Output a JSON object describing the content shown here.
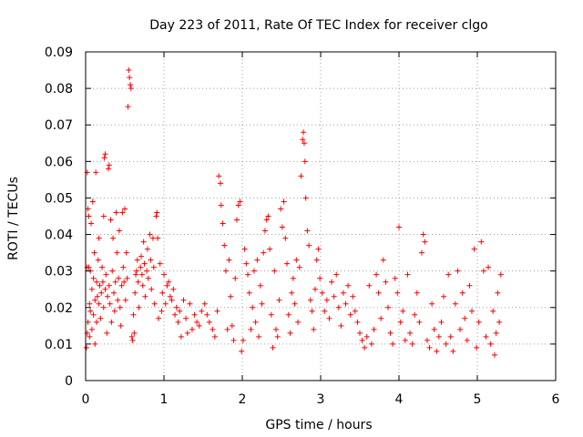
{
  "chart_data": {
    "type": "scatter",
    "title": "Day 223 of 2011, Rate Of TEC Index for receiver clgo",
    "xlabel": "GPS time / hours",
    "ylabel": "ROTI / TECUs",
    "xlim": [
      0,
      6
    ],
    "ylim": [
      0,
      0.09
    ],
    "x_ticks": [
      "0",
      "1",
      "2",
      "3",
      "4",
      "5",
      "6"
    ],
    "y_ticks": [
      "0",
      "0.01",
      "0.02",
      "0.03",
      "0.04",
      "0.05",
      "0.06",
      "0.07",
      "0.08",
      "0.09"
    ],
    "grid": true,
    "marker": "+",
    "marker_color": "#ff0000",
    "series": [
      {
        "points": [
          [
            0.01,
            0.009
          ],
          [
            0.02,
            0.013
          ],
          [
            0.02,
            0.031
          ],
          [
            0.02,
            0.057
          ],
          [
            0.03,
            0.016
          ],
          [
            0.03,
            0.047
          ],
          [
            0.04,
            0.045
          ],
          [
            0.04,
            0.031
          ],
          [
            0.05,
            0.021
          ],
          [
            0.05,
            0.012
          ],
          [
            0.06,
            0.019
          ],
          [
            0.06,
            0.03
          ],
          [
            0.07,
            0.043
          ],
          [
            0.08,
            0.025
          ],
          [
            0.08,
            0.014
          ],
          [
            0.09,
            0.049
          ],
          [
            0.1,
            0.028
          ],
          [
            0.1,
            0.018
          ],
          [
            0.11,
            0.035
          ],
          [
            0.12,
            0.01
          ],
          [
            0.12,
            0.022
          ],
          [
            0.13,
            0.057
          ],
          [
            0.14,
            0.027
          ],
          [
            0.14,
            0.016
          ],
          [
            0.15,
            0.023
          ],
          [
            0.16,
            0.033
          ],
          [
            0.17,
            0.021
          ],
          [
            0.17,
            0.039
          ],
          [
            0.18,
            0.026
          ],
          [
            0.19,
            0.017
          ],
          [
            0.2,
            0.024
          ],
          [
            0.21,
            0.031
          ],
          [
            0.22,
            0.027
          ],
          [
            0.23,
            0.045
          ],
          [
            0.23,
            0.02
          ],
          [
            0.24,
            0.061
          ],
          [
            0.25,
            0.062
          ],
          [
            0.25,
            0.025
          ],
          [
            0.26,
            0.029
          ],
          [
            0.27,
            0.013
          ],
          [
            0.28,
            0.023
          ],
          [
            0.29,
            0.058
          ],
          [
            0.3,
            0.059
          ],
          [
            0.3,
            0.026
          ],
          [
            0.31,
            0.021
          ],
          [
            0.32,
            0.044
          ],
          [
            0.33,
            0.016
          ],
          [
            0.34,
            0.03
          ],
          [
            0.35,
            0.039
          ],
          [
            0.36,
            0.024
          ],
          [
            0.37,
            0.019
          ],
          [
            0.38,
            0.027
          ],
          [
            0.39,
            0.046
          ],
          [
            0.4,
            0.035
          ],
          [
            0.41,
            0.022
          ],
          [
            0.42,
            0.028
          ],
          [
            0.43,
            0.041
          ],
          [
            0.44,
            0.02
          ],
          [
            0.45,
            0.015
          ],
          [
            0.46,
            0.026
          ],
          [
            0.47,
            0.046
          ],
          [
            0.48,
            0.031
          ],
          [
            0.49,
            0.027
          ],
          [
            0.5,
            0.047
          ],
          [
            0.51,
            0.022
          ],
          [
            0.52,
            0.035
          ],
          [
            0.53,
            0.028
          ],
          [
            0.54,
            0.075
          ],
          [
            0.55,
            0.085
          ],
          [
            0.56,
            0.083
          ],
          [
            0.57,
            0.081
          ],
          [
            0.58,
            0.08
          ],
          [
            0.59,
            0.012
          ],
          [
            0.6,
            0.011
          ],
          [
            0.61,
            0.018
          ],
          [
            0.62,
            0.013
          ],
          [
            0.63,
            0.024
          ],
          [
            0.64,
            0.029
          ],
          [
            0.65,
            0.03
          ],
          [
            0.66,
            0.033
          ],
          [
            0.67,
            0.027
          ],
          [
            0.68,
            0.02
          ],
          [
            0.7,
            0.031
          ],
          [
            0.71,
            0.034
          ],
          [
            0.72,
            0.029
          ],
          [
            0.73,
            0.026
          ],
          [
            0.74,
            0.038
          ],
          [
            0.75,
            0.032
          ],
          [
            0.76,
            0.023
          ],
          [
            0.78,
            0.03
          ],
          [
            0.79,
            0.036
          ],
          [
            0.8,
            0.028
          ],
          [
            0.82,
            0.04
          ],
          [
            0.83,
            0.033
          ],
          [
            0.84,
            0.025
          ],
          [
            0.86,
            0.039
          ],
          [
            0.87,
            0.031
          ],
          [
            0.88,
            0.021
          ],
          [
            0.9,
            0.045
          ],
          [
            0.91,
            0.046
          ],
          [
            0.92,
            0.039
          ],
          [
            0.93,
            0.017
          ],
          [
            0.95,
            0.032
          ],
          [
            0.97,
            0.019
          ],
          [
            0.98,
            0.024
          ],
          [
            1.0,
            0.029
          ],
          [
            1.02,
            0.021
          ],
          [
            1.04,
            0.026
          ],
          [
            1.06,
            0.027
          ],
          [
            1.08,
            0.023
          ],
          [
            1.1,
            0.022
          ],
          [
            1.12,
            0.025
          ],
          [
            1.14,
            0.018
          ],
          [
            1.16,
            0.02
          ],
          [
            1.18,
            0.016
          ],
          [
            1.2,
            0.019
          ],
          [
            1.22,
            0.012
          ],
          [
            1.25,
            0.022
          ],
          [
            1.28,
            0.017
          ],
          [
            1.3,
            0.013
          ],
          [
            1.33,
            0.021
          ],
          [
            1.36,
            0.014
          ],
          [
            1.39,
            0.018
          ],
          [
            1.42,
            0.016
          ],
          [
            1.45,
            0.015
          ],
          [
            1.48,
            0.019
          ],
          [
            1.52,
            0.021
          ],
          [
            1.55,
            0.018
          ],
          [
            1.58,
            0.016
          ],
          [
            1.62,
            0.014
          ],
          [
            1.65,
            0.012
          ],
          [
            1.68,
            0.019
          ],
          [
            1.7,
            0.056
          ],
          [
            1.72,
            0.054
          ],
          [
            1.73,
            0.048
          ],
          [
            1.75,
            0.043
          ],
          [
            1.77,
            0.037
          ],
          [
            1.79,
            0.03
          ],
          [
            1.81,
            0.014
          ],
          [
            1.83,
            0.033
          ],
          [
            1.85,
            0.023
          ],
          [
            1.87,
            0.015
          ],
          [
            1.89,
            0.011
          ],
          [
            1.91,
            0.028
          ],
          [
            1.93,
            0.044
          ],
          [
            1.95,
            0.048
          ],
          [
            1.97,
            0.049
          ],
          [
            1.99,
            0.008
          ],
          [
            2.01,
            0.011
          ],
          [
            2.03,
            0.036
          ],
          [
            2.05,
            0.032
          ],
          [
            2.07,
            0.029
          ],
          [
            2.09,
            0.024
          ],
          [
            2.11,
            0.014
          ],
          [
            2.13,
            0.02
          ],
          [
            2.15,
            0.03
          ],
          [
            2.17,
            0.016
          ],
          [
            2.19,
            0.033
          ],
          [
            2.21,
            0.012
          ],
          [
            2.23,
            0.026
          ],
          [
            2.25,
            0.021
          ],
          [
            2.27,
            0.035
          ],
          [
            2.29,
            0.041
          ],
          [
            2.31,
            0.044
          ],
          [
            2.33,
            0.045
          ],
          [
            2.35,
            0.036
          ],
          [
            2.37,
            0.018
          ],
          [
            2.39,
            0.009
          ],
          [
            2.41,
            0.03
          ],
          [
            2.43,
            0.014
          ],
          [
            2.45,
            0.012
          ],
          [
            2.47,
            0.022
          ],
          [
            2.49,
            0.047
          ],
          [
            2.51,
            0.042
          ],
          [
            2.53,
            0.049
          ],
          [
            2.55,
            0.039
          ],
          [
            2.57,
            0.032
          ],
          [
            2.59,
            0.018
          ],
          [
            2.61,
            0.013
          ],
          [
            2.63,
            0.024
          ],
          [
            2.65,
            0.028
          ],
          [
            2.67,
            0.021
          ],
          [
            2.69,
            0.033
          ],
          [
            2.71,
            0.016
          ],
          [
            2.73,
            0.031
          ],
          [
            2.75,
            0.056
          ],
          [
            2.77,
            0.066
          ],
          [
            2.78,
            0.068
          ],
          [
            2.79,
            0.065
          ],
          [
            2.8,
            0.06
          ],
          [
            2.81,
            0.05
          ],
          [
            2.83,
            0.041
          ],
          [
            2.85,
            0.037
          ],
          [
            2.87,
            0.022
          ],
          [
            2.89,
            0.019
          ],
          [
            2.91,
            0.014
          ],
          [
            2.93,
            0.025
          ],
          [
            2.95,
            0.033
          ],
          [
            2.97,
            0.036
          ],
          [
            2.99,
            0.028
          ],
          [
            3.02,
            0.024
          ],
          [
            3.05,
            0.019
          ],
          [
            3.08,
            0.022
          ],
          [
            3.11,
            0.017
          ],
          [
            3.14,
            0.027
          ],
          [
            3.17,
            0.023
          ],
          [
            3.2,
            0.029
          ],
          [
            3.23,
            0.02
          ],
          [
            3.26,
            0.015
          ],
          [
            3.29,
            0.024
          ],
          [
            3.32,
            0.021
          ],
          [
            3.35,
            0.026
          ],
          [
            3.38,
            0.018
          ],
          [
            3.41,
            0.023
          ],
          [
            3.44,
            0.019
          ],
          [
            3.47,
            0.016
          ],
          [
            3.5,
            0.013
          ],
          [
            3.53,
            0.011
          ],
          [
            3.56,
            0.009
          ],
          [
            3.59,
            0.012
          ],
          [
            3.62,
            0.026
          ],
          [
            3.65,
            0.01
          ],
          [
            3.68,
            0.014
          ],
          [
            3.71,
            0.029
          ],
          [
            3.74,
            0.024
          ],
          [
            3.77,
            0.017
          ],
          [
            3.8,
            0.033
          ],
          [
            3.83,
            0.027
          ],
          [
            3.86,
            0.02
          ],
          [
            3.89,
            0.013
          ],
          [
            3.92,
            0.01
          ],
          [
            3.95,
            0.028
          ],
          [
            3.98,
            0.024
          ],
          [
            4.0,
            0.042
          ],
          [
            4.02,
            0.016
          ],
          [
            4.05,
            0.019
          ],
          [
            4.08,
            0.011
          ],
          [
            4.11,
            0.029
          ],
          [
            4.14,
            0.013
          ],
          [
            4.17,
            0.01
          ],
          [
            4.2,
            0.018
          ],
          [
            4.23,
            0.024
          ],
          [
            4.26,
            0.016
          ],
          [
            4.29,
            0.035
          ],
          [
            4.31,
            0.04
          ],
          [
            4.33,
            0.038
          ],
          [
            4.36,
            0.011
          ],
          [
            4.39,
            0.009
          ],
          [
            4.42,
            0.021
          ],
          [
            4.45,
            0.014
          ],
          [
            4.48,
            0.008
          ],
          [
            4.51,
            0.012
          ],
          [
            4.54,
            0.016
          ],
          [
            4.57,
            0.023
          ],
          [
            4.6,
            0.01
          ],
          [
            4.63,
            0.029
          ],
          [
            4.66,
            0.012
          ],
          [
            4.69,
            0.008
          ],
          [
            4.72,
            0.021
          ],
          [
            4.75,
            0.03
          ],
          [
            4.78,
            0.014
          ],
          [
            4.81,
            0.024
          ],
          [
            4.84,
            0.017
          ],
          [
            4.87,
            0.011
          ],
          [
            4.9,
            0.026
          ],
          [
            4.93,
            0.019
          ],
          [
            4.96,
            0.036
          ],
          [
            4.99,
            0.009
          ],
          [
            5.02,
            0.016
          ],
          [
            5.05,
            0.038
          ],
          [
            5.08,
            0.03
          ],
          [
            5.11,
            0.012
          ],
          [
            5.14,
            0.031
          ],
          [
            5.17,
            0.01
          ],
          [
            5.2,
            0.019
          ],
          [
            5.22,
            0.007
          ],
          [
            5.24,
            0.013
          ],
          [
            5.26,
            0.024
          ],
          [
            5.28,
            0.016
          ],
          [
            5.3,
            0.029
          ]
        ]
      }
    ]
  }
}
